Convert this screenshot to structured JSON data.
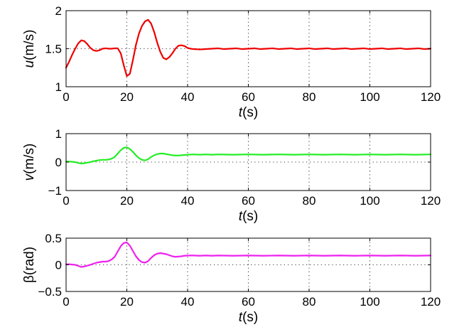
{
  "chart_data": [
    {
      "type": "line",
      "ylabel": {
        "symbol": "u",
        "unit": "(m/s)"
      },
      "xlabel": {
        "symbol": "t",
        "unit": "(s)"
      },
      "xlim": [
        0,
        120
      ],
      "ylim": [
        1,
        2
      ],
      "xticks": [
        0,
        20,
        40,
        60,
        80,
        100,
        120
      ],
      "yticks": [
        1,
        1.5,
        2
      ],
      "ytick_labels": [
        "1",
        "1.5",
        "2"
      ],
      "grid": true,
      "series": [
        {
          "color": "#ee0000",
          "x": [
            0,
            1,
            2,
            3,
            4,
            5,
            6,
            7,
            8,
            9,
            10,
            11,
            12,
            13,
            14,
            15,
            16,
            17,
            18,
            19,
            20,
            21,
            22,
            23,
            24,
            25,
            26,
            27,
            28,
            29,
            30,
            31,
            32,
            33,
            34,
            35,
            36,
            37,
            38,
            39,
            40,
            41,
            42,
            44,
            46,
            48,
            50,
            52,
            54,
            56,
            58,
            60,
            62,
            64,
            66,
            68,
            70,
            72,
            74,
            76,
            78,
            80,
            82,
            84,
            86,
            88,
            90,
            92,
            94,
            96,
            98,
            100,
            102,
            104,
            106,
            108,
            110,
            112,
            114,
            116,
            118,
            120
          ],
          "y": [
            1.25,
            1.33,
            1.42,
            1.5,
            1.57,
            1.61,
            1.6,
            1.56,
            1.51,
            1.48,
            1.47,
            1.48,
            1.5,
            1.505,
            1.5,
            1.5,
            1.505,
            1.505,
            1.44,
            1.28,
            1.14,
            1.17,
            1.35,
            1.55,
            1.7,
            1.8,
            1.86,
            1.88,
            1.83,
            1.72,
            1.58,
            1.46,
            1.38,
            1.36,
            1.39,
            1.44,
            1.5,
            1.54,
            1.545,
            1.535,
            1.51,
            1.5,
            1.495,
            1.49,
            1.495,
            1.5,
            1.505,
            1.495,
            1.5,
            1.505,
            1.495,
            1.5,
            1.505,
            1.495,
            1.5,
            1.505,
            1.495,
            1.5,
            1.505,
            1.495,
            1.5,
            1.505,
            1.495,
            1.5,
            1.505,
            1.495,
            1.5,
            1.505,
            1.495,
            1.5,
            1.505,
            1.495,
            1.5,
            1.505,
            1.495,
            1.5,
            1.505,
            1.495,
            1.5,
            1.505,
            1.495,
            1.5
          ]
        }
      ]
    },
    {
      "type": "line",
      "ylabel": {
        "symbol": "v",
        "unit": "(m/s)"
      },
      "xlabel": {
        "symbol": "t",
        "unit": "(s)"
      },
      "xlim": [
        0,
        120
      ],
      "ylim": [
        -1,
        1
      ],
      "xticks": [
        0,
        20,
        40,
        60,
        80,
        100,
        120
      ],
      "yticks": [
        -1,
        0,
        1
      ],
      "ytick_labels": [
        "−1",
        "0",
        "1"
      ],
      "grid": true,
      "series": [
        {
          "color": "#22ee22",
          "x": [
            0,
            1,
            2,
            3,
            4,
            5,
            6,
            7,
            8,
            9,
            10,
            11,
            12,
            13,
            14,
            15,
            16,
            17,
            18,
            19,
            20,
            21,
            22,
            23,
            24,
            25,
            26,
            27,
            28,
            29,
            30,
            31,
            32,
            33,
            34,
            35,
            36,
            37,
            38,
            39,
            40,
            42,
            44,
            46,
            48,
            50,
            55,
            60,
            65,
            70,
            75,
            80,
            85,
            90,
            95,
            100,
            105,
            110,
            115,
            120
          ],
          "y": [
            0.02,
            0.02,
            0.01,
            0.0,
            -0.03,
            -0.05,
            -0.04,
            -0.02,
            0.0,
            0.03,
            0.05,
            0.07,
            0.08,
            0.08,
            0.09,
            0.12,
            0.18,
            0.3,
            0.42,
            0.5,
            0.52,
            0.46,
            0.36,
            0.24,
            0.14,
            0.08,
            0.06,
            0.1,
            0.18,
            0.24,
            0.28,
            0.3,
            0.3,
            0.28,
            0.26,
            0.24,
            0.23,
            0.23,
            0.24,
            0.25,
            0.26,
            0.27,
            0.26,
            0.27,
            0.26,
            0.27,
            0.26,
            0.27,
            0.26,
            0.27,
            0.26,
            0.27,
            0.26,
            0.27,
            0.26,
            0.27,
            0.26,
            0.27,
            0.26,
            0.27
          ]
        }
      ]
    },
    {
      "type": "line",
      "ylabel": {
        "symbol": "β",
        "unit": "(rad)"
      },
      "xlabel": {
        "symbol": "t",
        "unit": "(s)"
      },
      "xlim": [
        0,
        120
      ],
      "ylim": [
        -0.5,
        0.5
      ],
      "xticks": [
        0,
        20,
        40,
        60,
        80,
        100,
        120
      ],
      "yticks": [
        -0.5,
        0,
        0.5
      ],
      "ytick_labels": [
        "−0.5",
        "0",
        "0.5"
      ],
      "grid": true,
      "series": [
        {
          "color": "#ee22ee",
          "x": [
            0,
            1,
            2,
            3,
            4,
            5,
            6,
            7,
            8,
            9,
            10,
            11,
            12,
            13,
            14,
            15,
            16,
            17,
            18,
            19,
            20,
            21,
            22,
            23,
            24,
            25,
            26,
            27,
            28,
            29,
            30,
            31,
            32,
            33,
            34,
            35,
            36,
            37,
            38,
            39,
            40,
            42,
            44,
            46,
            48,
            50,
            55,
            60,
            65,
            70,
            75,
            80,
            85,
            90,
            95,
            100,
            105,
            110,
            115,
            120
          ],
          "y": [
            0.01,
            0.01,
            0.005,
            0.0,
            -0.02,
            -0.04,
            -0.03,
            -0.015,
            0.0,
            0.02,
            0.04,
            0.05,
            0.06,
            0.06,
            0.07,
            0.1,
            0.15,
            0.25,
            0.35,
            0.41,
            0.42,
            0.36,
            0.26,
            0.16,
            0.09,
            0.05,
            0.04,
            0.07,
            0.13,
            0.18,
            0.21,
            0.22,
            0.21,
            0.2,
            0.18,
            0.16,
            0.15,
            0.155,
            0.16,
            0.17,
            0.175,
            0.175,
            0.17,
            0.175,
            0.17,
            0.175,
            0.17,
            0.175,
            0.17,
            0.175,
            0.17,
            0.175,
            0.17,
            0.175,
            0.17,
            0.175,
            0.17,
            0.175,
            0.17,
            0.175
          ]
        }
      ]
    }
  ]
}
